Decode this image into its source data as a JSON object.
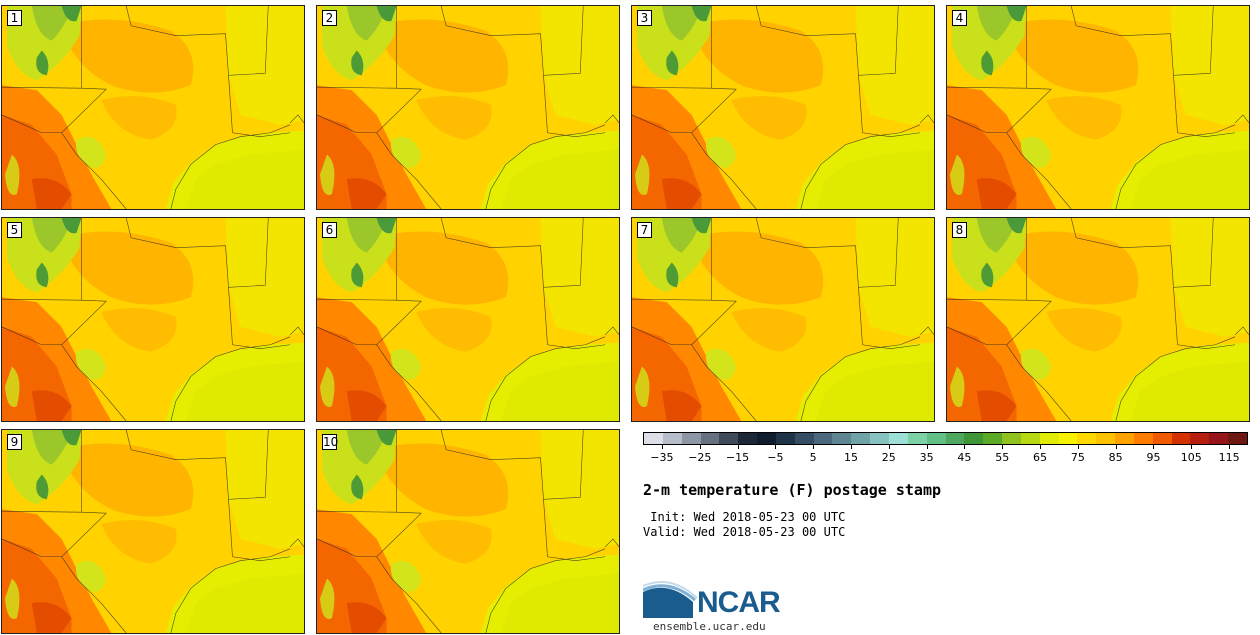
{
  "panels": [
    {
      "label": "1"
    },
    {
      "label": "2"
    },
    {
      "label": "3"
    },
    {
      "label": "4"
    },
    {
      "label": "5"
    },
    {
      "label": "6"
    },
    {
      "label": "7"
    },
    {
      "label": "8"
    },
    {
      "label": "9"
    },
    {
      "label": "10"
    }
  ],
  "legend": {
    "colors": [
      "#dcdfe8",
      "#b6bcc8",
      "#8d96a4",
      "#66707f",
      "#3f4a5a",
      "#1c2838",
      "#0f1c2e",
      "#1f3347",
      "#344d62",
      "#4a677b",
      "#5d8592",
      "#6fa3a8",
      "#86c2c0",
      "#9ce0d6",
      "#7dd2a5",
      "#62bf85",
      "#4ea85f",
      "#3e9638",
      "#5aa927",
      "#8fc21e",
      "#b7d914",
      "#e0ec06",
      "#f7f300",
      "#ffd900",
      "#ffc200",
      "#ffa200",
      "#ff7c00",
      "#f05a00",
      "#d33200",
      "#b61e10",
      "#96151a",
      "#6e1814"
    ],
    "tick_labels": [
      "−35",
      "−25",
      "−15",
      "−5",
      "5",
      "15",
      "25",
      "35",
      "45",
      "55",
      "65",
      "75",
      "85",
      "95",
      "105",
      "115"
    ]
  },
  "title": "2-m temperature (F) postage stamp",
  "init_line": " Init: Wed 2018-05-23 00 UTC",
  "valid_line": "Valid: Wed 2018-05-23 00 UTC",
  "logo_text": "NCAR",
  "url": "ensemble.ucar.edu"
}
